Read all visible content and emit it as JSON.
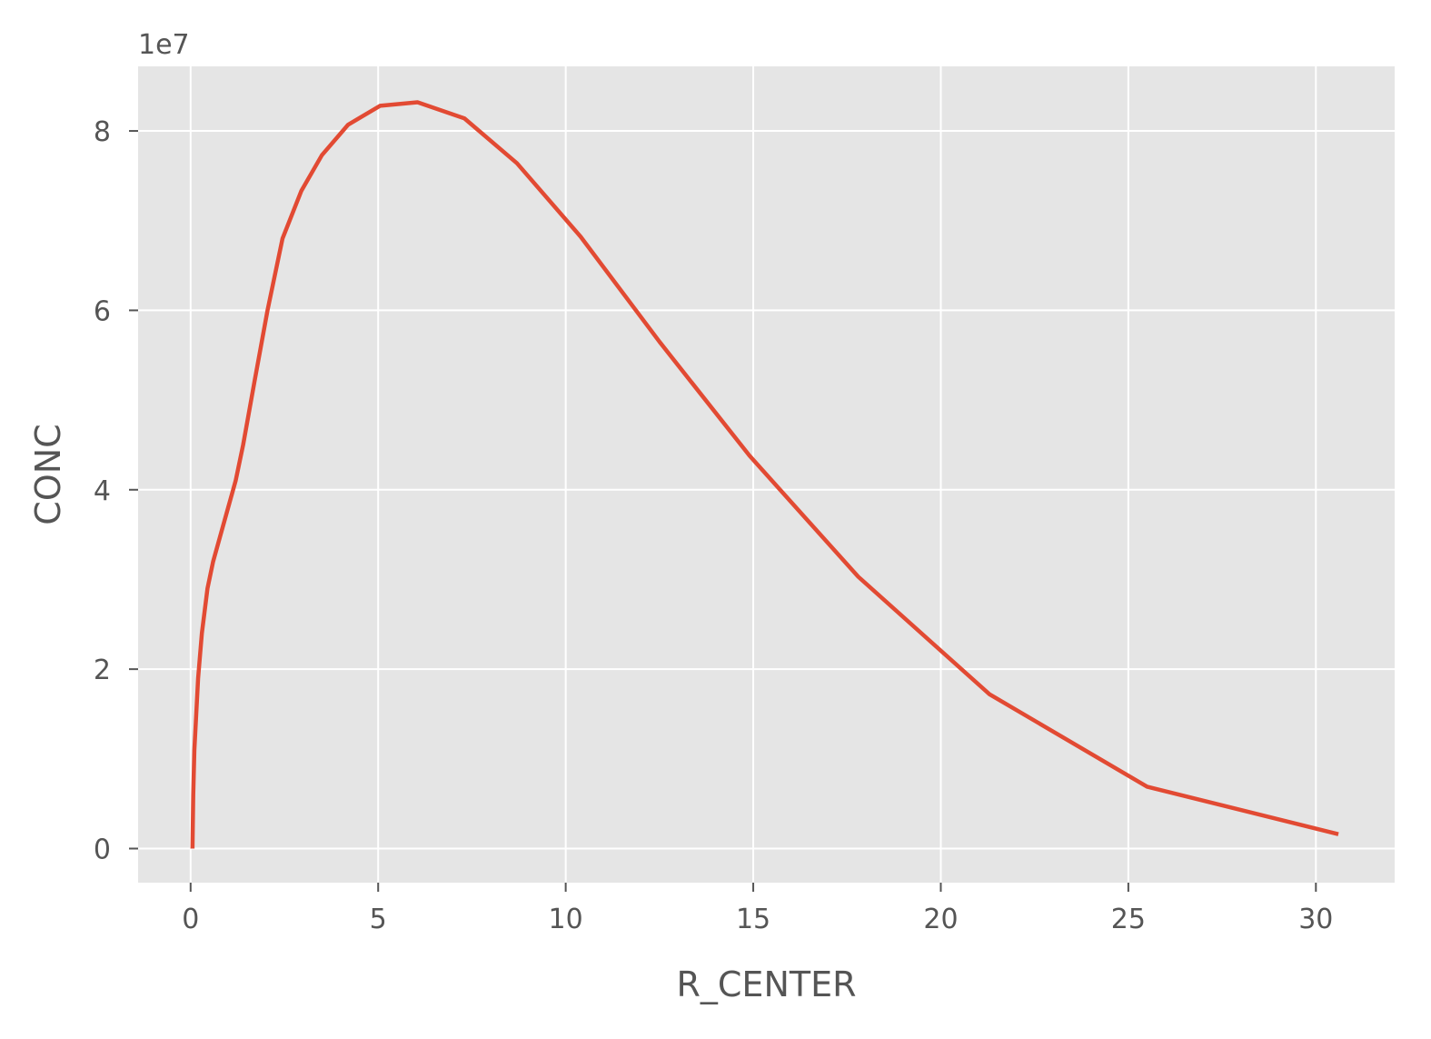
{
  "chart_data": {
    "type": "line",
    "title": "",
    "xlabel": "R_CENTER",
    "ylabel": "CONC",
    "y_offset_label": "1e7",
    "xlim": [
      -1.4,
      32.1
    ],
    "ylim": [
      -0.38,
      8.72
    ],
    "y_scale_factor": 10000000,
    "x_ticks": [
      0,
      5,
      10,
      15,
      20,
      25,
      30
    ],
    "x_tick_labels": [
      "0",
      "5",
      "10",
      "15",
      "20",
      "25",
      "30"
    ],
    "y_ticks": [
      0,
      2,
      4,
      6,
      8
    ],
    "y_tick_labels": [
      "0",
      "2",
      "4",
      "6",
      "8"
    ],
    "grid": true,
    "background": "#e5e5e5",
    "grid_color": "#ffffff",
    "series": [
      {
        "color": "#e24a33",
        "x": [
          0.05,
          0.07,
          0.1,
          0.15,
          0.2,
          0.3,
          0.45,
          0.6,
          0.8,
          1.0,
          1.2,
          1.4,
          1.7,
          2.05,
          2.45,
          2.95,
          3.5,
          4.2,
          5.05,
          6.05,
          7.3,
          8.7,
          10.4,
          12.5,
          14.9,
          17.8,
          21.3,
          25.5,
          30.6
        ],
        "y": [
          0.0,
          0.6,
          1.1,
          1.5,
          1.9,
          2.4,
          2.9,
          3.2,
          3.5,
          3.8,
          4.1,
          4.5,
          5.2,
          6.0,
          6.8,
          7.33,
          7.73,
          8.07,
          8.28,
          8.32,
          8.14,
          7.64,
          6.82,
          5.65,
          4.38,
          3.03,
          1.72,
          0.69,
          0.16
        ]
      }
    ]
  }
}
